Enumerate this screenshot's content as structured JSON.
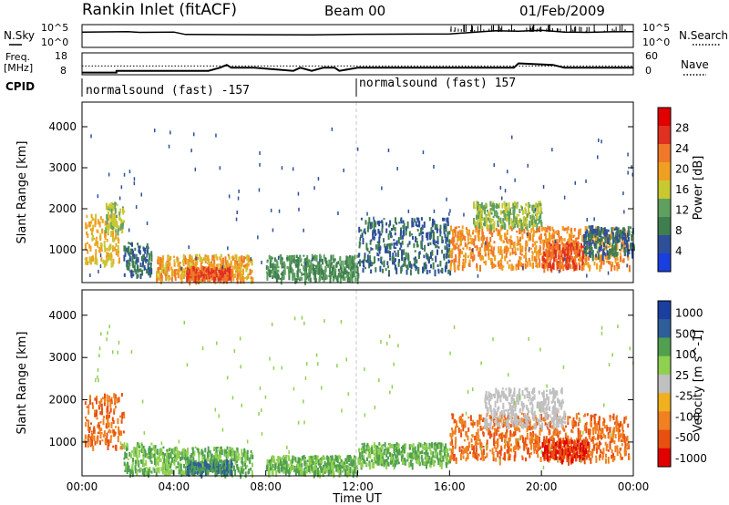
{
  "header": {
    "station": "Rankin Inlet (fitACF)",
    "beam": "Beam 00",
    "date": "01/Feb/2009"
  },
  "nsky_panel": {
    "left_label": "N.Sky",
    "right_label": "N.Search",
    "left_ticks": [
      "10^5",
      "10^0"
    ],
    "right_ticks": [
      "10^5",
      "10^0"
    ]
  },
  "freq_panel": {
    "left_label_line1": "Freq.",
    "left_label_line2": "[MHz]",
    "right_label": "Nave",
    "left_ticks": [
      "18",
      "8"
    ],
    "right_ticks": [
      "60",
      "0"
    ]
  },
  "cpid": {
    "label": "CPID",
    "segments": [
      "normalsound (fast) -157",
      "normalsound (fast) 157"
    ]
  },
  "colors": {
    "power_scale": [
      "#1a3fe0",
      "#2e4f9a",
      "#3f7f4f",
      "#5fa060",
      "#c8c832",
      "#f0a020",
      "#f07828",
      "#e03020",
      "#e00000"
    ],
    "velocity_scale": [
      "#e00000",
      "#e85010",
      "#f08020",
      "#f0b020",
      "#c0c0c0",
      "#90d050",
      "#50a050",
      "#2e5f9a",
      "#1a3fa0"
    ],
    "dash_line": "#c8c8c8"
  },
  "chart_data": [
    {
      "type": "line",
      "name": "nsky-nsearch",
      "x": [
        0,
        2,
        2.5,
        4,
        4.5,
        10,
        12,
        16,
        17,
        18,
        19,
        20,
        21,
        22,
        23,
        24
      ],
      "y": [
        0.72,
        0.75,
        0.7,
        0.72,
        0.55,
        0.52,
        0.56,
        0.58,
        0.7,
        0.82,
        0.78,
        0.85,
        0.72,
        0.7,
        0.74,
        0.75
      ],
      "xlim": [
        0,
        24
      ]
    },
    {
      "type": "line",
      "name": "frequency",
      "x": [
        0,
        1.5,
        1.5,
        5.5,
        6,
        6.3,
        6.5,
        7.3,
        7.5,
        9.2,
        9.5,
        10,
        10.5,
        11,
        11.2,
        12,
        14,
        17,
        18.8,
        19,
        20.5,
        21,
        23,
        24
      ],
      "y": [
        9.0,
        9.0,
        9.8,
        9.8,
        11.2,
        12.5,
        11.2,
        11.2,
        11.2,
        9.8,
        11.2,
        9.8,
        11.2,
        11.2,
        9.8,
        11.2,
        11.2,
        11.2,
        11.2,
        13.2,
        12.5,
        11.2,
        11.2,
        11.2
      ],
      "ylim": [
        8,
        18
      ],
      "reference_line": 12
    },
    {
      "type": "heatmap",
      "name": "power",
      "title": "",
      "xlabel": "",
      "ylabel": "Slant Range [km]",
      "colorbar_label": "Power [dB]",
      "colorbar_ticks": [
        4,
        8,
        12,
        16,
        20,
        24,
        28
      ],
      "xlim": [
        0,
        24
      ],
      "ylim": [
        200,
        4600
      ],
      "y_ticks": [
        1000,
        2000,
        3000,
        4000
      ],
      "echo_regions": [
        {
          "t0": 0.1,
          "t1": 1.6,
          "r0": 700,
          "r1": 1900,
          "level": 20
        },
        {
          "t0": 1.0,
          "t1": 1.8,
          "r0": 1500,
          "r1": 2200,
          "level": 16
        },
        {
          "t0": 1.8,
          "t1": 3.0,
          "r0": 400,
          "r1": 1200,
          "level": 8
        },
        {
          "t0": 3.2,
          "t1": 7.4,
          "r0": 300,
          "r1": 900,
          "level": 22
        },
        {
          "t0": 4.5,
          "t1": 6.5,
          "r0": 300,
          "r1": 600,
          "level": 28
        },
        {
          "t0": 8.0,
          "t1": 12.0,
          "r0": 300,
          "r1": 900,
          "level": 12
        },
        {
          "t0": 12.0,
          "t1": 16.0,
          "r0": 500,
          "r1": 1800,
          "level": 8
        },
        {
          "t0": 16.0,
          "t1": 23.8,
          "r0": 600,
          "r1": 1600,
          "level": 24
        },
        {
          "t0": 17.0,
          "t1": 20.0,
          "r0": 1600,
          "r1": 2200,
          "level": 16
        },
        {
          "t0": 20.0,
          "t1": 21.8,
          "r0": 600,
          "r1": 1200,
          "level": 28
        },
        {
          "t0": 21.8,
          "t1": 24.0,
          "r0": 900,
          "r1": 1600,
          "level": 8
        }
      ]
    },
    {
      "type": "heatmap",
      "name": "velocity",
      "title": "",
      "xlabel": "Time UT",
      "ylabel": "Slant Range [km]",
      "colorbar_label": "Velocity [m s^-1]",
      "colorbar_ticks": [
        1000,
        500,
        100,
        25,
        -25,
        -100,
        -500,
        -1000
      ],
      "x_ticks": [
        "00:00",
        "04:00",
        "08:00",
        "12:00",
        "16:00",
        "20:00",
        "00:00"
      ],
      "xlim": [
        0,
        24
      ],
      "ylim": [
        200,
        4600
      ],
      "y_ticks": [
        1000,
        2000,
        3000,
        4000
      ],
      "echo_regions": [
        {
          "t0": 0.1,
          "t1": 1.8,
          "r0": 900,
          "r1": 2200,
          "level": -500
        },
        {
          "t0": 1.8,
          "t1": 3.2,
          "r0": 300,
          "r1": 1000,
          "level": 100
        },
        {
          "t0": 3.2,
          "t1": 7.4,
          "r0": 300,
          "r1": 900,
          "level": 100
        },
        {
          "t0": 4.5,
          "t1": 6.5,
          "r0": 300,
          "r1": 600,
          "level": 500
        },
        {
          "t0": 8.0,
          "t1": 12.0,
          "r0": 300,
          "r1": 700,
          "level": 100
        },
        {
          "t0": 12.0,
          "t1": 16.0,
          "r0": 500,
          "r1": 1000,
          "level": 100
        },
        {
          "t0": 16.0,
          "t1": 23.8,
          "r0": 600,
          "r1": 1700,
          "level": -500
        },
        {
          "t0": 17.5,
          "t1": 21.0,
          "r0": 1400,
          "r1": 2300,
          "level": 0
        },
        {
          "t0": 20.0,
          "t1": 22.0,
          "r0": 600,
          "r1": 1100,
          "level": -1000
        }
      ]
    }
  ]
}
